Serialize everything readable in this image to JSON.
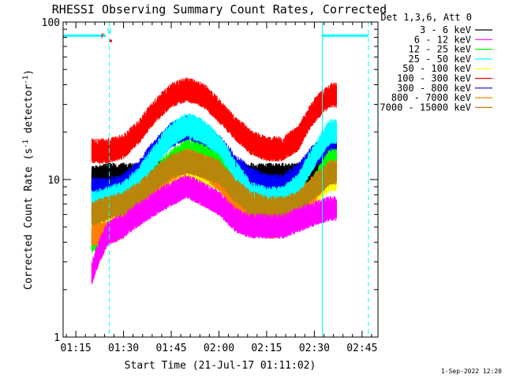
{
  "chart_data": {
    "type": "line",
    "title": "RHESSI Observing Summary Count Rates, Corrected",
    "xlabel": "Start Time (21-Jul-17 01:11:02)",
    "ylabel_main": "Corrected Count Rate (s",
    "ylabel_sup1": "-1",
    "ylabel_mid": " detector",
    "ylabel_sup2": "-1",
    "ylabel_end": ")",
    "yscale": "log",
    "ylim": [
      1,
      100
    ],
    "xlim_minutes": [
      71,
      170
    ],
    "y_ticks": [
      {
        "value": 1,
        "label": "1"
      },
      {
        "value": 10,
        "label": "10"
      },
      {
        "value": 100,
        "label": "100"
      }
    ],
    "x_ticks": [
      {
        "value": 75,
        "label": "01:15"
      },
      {
        "value": 90,
        "label": "01:30"
      },
      {
        "value": 105,
        "label": "01:45"
      },
      {
        "value": 120,
        "label": "02:00"
      },
      {
        "value": 135,
        "label": "02:15"
      },
      {
        "value": 150,
        "label": "02:30"
      },
      {
        "value": 165,
        "label": "02:45"
      }
    ],
    "legend_header": "Det 1,3,6, Att 0",
    "series": [
      {
        "name": "3 - 6 keV",
        "color": "#000000",
        "x": [
          80,
          85,
          90,
          95,
          100,
          105,
          110,
          115,
          120,
          125,
          130,
          135,
          140,
          145,
          150,
          155
        ],
        "y": [
          10,
          10.5,
          10.5,
          10.5,
          11,
          11,
          11,
          11,
          11,
          10.5,
          10.5,
          10.5,
          10.5,
          10.5,
          11.5,
          11.5
        ]
      },
      {
        "name": "6 - 12 keV",
        "color": "#ff00ff",
        "x": [
          80,
          85,
          90,
          95,
          100,
          105,
          110,
          115,
          120,
          125,
          130,
          135,
          140,
          145,
          150,
          155
        ],
        "y": [
          2.5,
          4.5,
          5,
          6,
          7,
          8,
          9,
          8,
          7,
          5.5,
          5,
          5,
          5,
          5.5,
          6,
          6.5
        ]
      },
      {
        "name": "12 - 25 keV",
        "color": "#00ff00",
        "x": [
          80,
          85,
          90,
          95,
          100,
          105,
          110,
          115,
          120,
          125,
          130,
          135,
          140,
          145,
          150,
          155
        ],
        "y": [
          4,
          5,
          5.5,
          7,
          10,
          13,
          15,
          14,
          12,
          8,
          6,
          5.5,
          5.5,
          6,
          9,
          13
        ]
      },
      {
        "name": "25 - 50 keV",
        "color": "#00ffff",
        "x": [
          80,
          85,
          90,
          95,
          100,
          105,
          110,
          115,
          120,
          125,
          130,
          135,
          140,
          145,
          150,
          155
        ],
        "y": [
          7,
          7.5,
          8,
          10,
          14,
          19,
          22,
          20,
          16,
          11,
          8,
          7.5,
          7.5,
          9,
          14,
          20
        ]
      },
      {
        "name": "50 - 100 keV",
        "color": "#ffff00",
        "x": [
          80,
          85,
          90,
          95,
          100,
          105,
          110,
          115,
          120,
          125,
          130,
          135,
          140,
          145,
          150,
          155
        ],
        "y": [
          5,
          5.5,
          6,
          7,
          9,
          11,
          12,
          11,
          10,
          8,
          6,
          5.5,
          5.5,
          6,
          8,
          10
        ]
      },
      {
        "name": "100 - 300 keV",
        "color": "#ff0000",
        "x": [
          80,
          85,
          90,
          95,
          100,
          105,
          110,
          115,
          120,
          125,
          130,
          135,
          140,
          145,
          150,
          155
        ],
        "y": [
          15,
          15,
          16,
          20,
          27,
          34,
          37,
          34,
          27,
          21,
          17,
          15.5,
          15.5,
          18,
          27,
          34
        ]
      },
      {
        "name": "300 - 800 keV",
        "color": "#0000ff",
        "x": [
          80,
          85,
          90,
          95,
          100,
          105,
          110,
          115,
          120,
          125,
          130,
          135,
          140,
          145,
          150,
          155
        ],
        "y": [
          8.5,
          8.5,
          9,
          11,
          15,
          19,
          21,
          19,
          16,
          12,
          10,
          9,
          9,
          10.5,
          14,
          17
        ]
      },
      {
        "name": "800 - 7000 keV",
        "color": "#ff8000",
        "x": [
          80,
          85,
          90,
          95,
          100,
          105,
          110,
          115,
          120,
          125,
          130,
          135,
          140,
          145,
          150,
          155
        ],
        "y": [
          4.5,
          4.5,
          5,
          6.5,
          9,
          11.5,
          13,
          12,
          10,
          7,
          5.5,
          5,
          5,
          6,
          8.5,
          11
        ]
      },
      {
        "name": "7000 - 15000 keV",
        "color": "#b8860b",
        "x": [
          80,
          85,
          90,
          95,
          100,
          105,
          110,
          115,
          120,
          125,
          130,
          135,
          140,
          145,
          150,
          155
        ],
        "y": [
          6,
          6.5,
          7,
          8,
          10,
          12,
          13,
          12,
          11,
          8.5,
          7,
          6.5,
          6.5,
          7,
          9,
          11
        ]
      }
    ],
    "annotations": [
      {
        "text": "F",
        "color": "#ff0000",
        "x": 83.5
      },
      {
        "text": "N",
        "color": "#00ffff",
        "x": 85.5
      }
    ],
    "status_bars": [
      {
        "name": "night",
        "color": "#00ffff",
        "x0": 71,
        "x1": 84.5,
        "y": 82
      },
      {
        "name": "night",
        "color": "#00ffff",
        "x0": 152.5,
        "x1": 167,
        "y": 82
      }
    ],
    "flare_marks": [
      {
        "x": 86,
        "y": 76,
        "color": "#ff0000"
      }
    ],
    "vlines": [
      {
        "x": 71,
        "color": "#00ffff",
        "style": "solid"
      },
      {
        "x": 85.5,
        "color": "#00ffff",
        "style": "dashed"
      },
      {
        "x": 152.5,
        "color": "#00ffff",
        "style": "solid"
      },
      {
        "x": 167,
        "color": "#00ffff",
        "style": "dashed"
      }
    ],
    "data_range_minutes": [
      80,
      157
    ],
    "timestamp": "1-Sep-2022 12:20",
    "grid": false,
    "legend_position": "right"
  }
}
